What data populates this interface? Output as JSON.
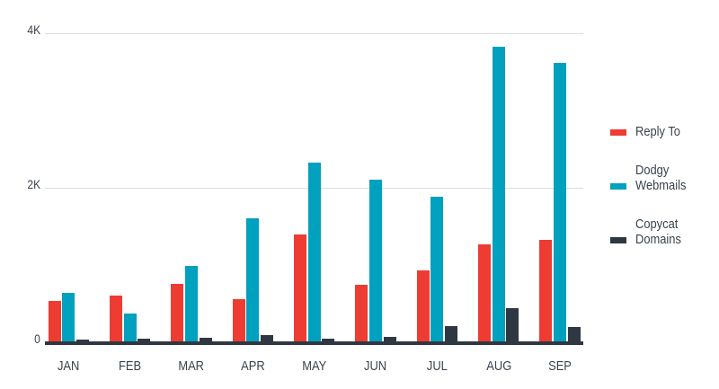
{
  "chart_data": {
    "type": "bar",
    "title": "",
    "categories": [
      "JAN",
      "FEB",
      "MAR",
      "APR",
      "MAY",
      "JUN",
      "JUL",
      "AUG",
      "SEP"
    ],
    "series": [
      {
        "name": "Reply To",
        "color": "#ee3c33",
        "values": [
          530,
          600,
          750,
          560,
          1390,
          740,
          930,
          1270,
          1320
        ]
      },
      {
        "name": "Dodgy Webmails",
        "color": "#00a0bf",
        "values": [
          640,
          370,
          990,
          1600,
          2330,
          2110,
          1880,
          3830,
          3620
        ]
      },
      {
        "name": "Copycat Domains",
        "color": "#2f3842",
        "values": [
          30,
          50,
          55,
          95,
          45,
          75,
          215,
          445,
          200
        ]
      }
    ],
    "xlabel": "",
    "ylabel": "",
    "ylim": [
      0,
      4000
    ],
    "yticks": [
      {
        "value": 0,
        "label": "0"
      },
      {
        "value": 2000,
        "label": "2K"
      },
      {
        "value": 4000,
        "label": "4K"
      }
    ],
    "grid": "horizontal",
    "gridline_values": [
      2000,
      4000
    ],
    "legend_position": "right"
  },
  "legend": {
    "items": [
      {
        "icon": "legend-swatch",
        "color": "#ee3c33",
        "label_lines": [
          "Reply To"
        ]
      },
      {
        "icon": "legend-swatch",
        "color": "#00a0bf",
        "label_lines": [
          "Dodgy",
          "Webmails"
        ]
      },
      {
        "icon": "legend-swatch",
        "color": "#2f3842",
        "label_lines": [
          "Copycat",
          "Domains"
        ]
      }
    ]
  },
  "colors": {
    "background": "#ffffff",
    "grid_line": "#dcdcdc",
    "axis_line": "#2f3842",
    "text": "#39424c"
  }
}
